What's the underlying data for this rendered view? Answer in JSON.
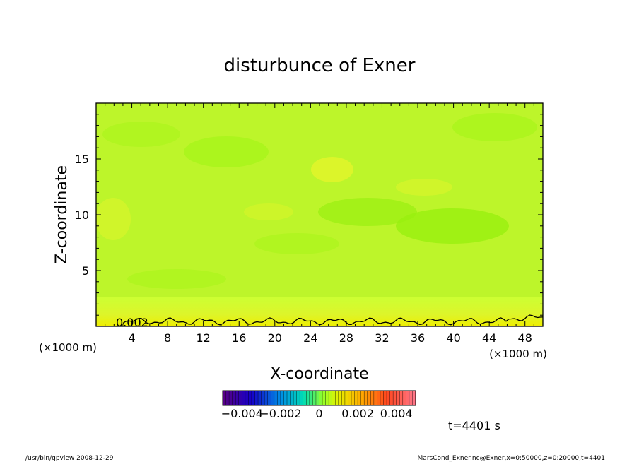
{
  "chart_data": {
    "type": "heatmap",
    "title": "disturbunce of Exner",
    "xlabel": "X-coordinate",
    "ylabel": "Z-coordinate",
    "x_unit": "(×1000 m)",
    "y_unit": "(×1000 m)",
    "xlim": [
      0,
      50
    ],
    "ylim": [
      0,
      20
    ],
    "x_ticks": [
      "4",
      "8",
      "12",
      "16",
      "20",
      "24",
      "28",
      "32",
      "36",
      "40",
      "44",
      "48"
    ],
    "y_ticks": [
      "5",
      "10",
      "15"
    ],
    "x_tick_values": [
      4,
      8,
      12,
      16,
      20,
      24,
      28,
      32,
      36,
      40,
      44,
      48
    ],
    "y_tick_values": [
      5,
      10,
      15
    ],
    "contour_label": "0.002",
    "contour_value": 0.002,
    "colorbar": {
      "min": -0.005,
      "max": 0.005,
      "labels": [
        "−0.004",
        "−0.002",
        "0",
        "0.002",
        "0.004"
      ],
      "label_values": [
        -0.004,
        -0.002,
        0,
        0.002,
        0.004
      ]
    },
    "dominant_values": {
      "interior": 0.0003,
      "near_surface": 0.0021
    },
    "colors": {
      "green": "#99ff00",
      "yellow_green": "#ccff33",
      "yellow": "#eeee00"
    }
  },
  "time_label": "t=4401 s",
  "footer_left": "/usr/bin/gpview  2008-12-29",
  "footer_right": "MarsCond_Exner.nc@Exner,x=0:50000,z=0:20000,t=4401"
}
